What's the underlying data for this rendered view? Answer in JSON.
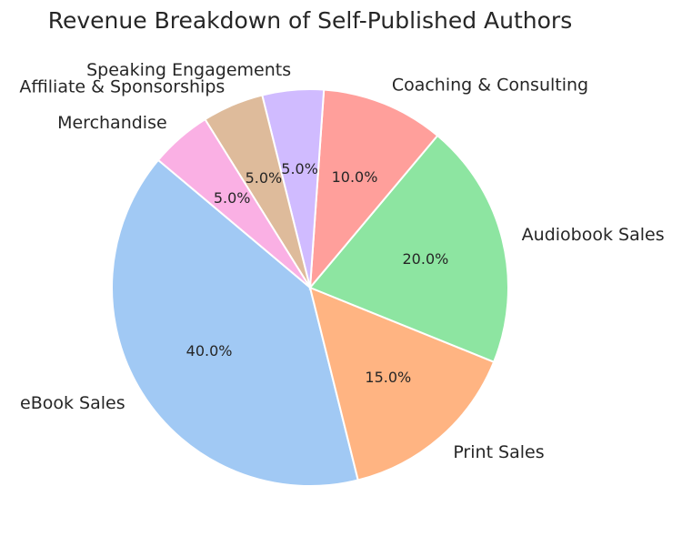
{
  "chart_data": {
    "type": "pie",
    "title": "Revenue Breakdown of Self-Published Authors",
    "start_angle_deg": 140,
    "direction": "counterclockwise",
    "slices": [
      {
        "label": "eBook Sales",
        "value": 40.0,
        "pct_text": "40.0%",
        "color": "#a1c9f4"
      },
      {
        "label": "Print Sales",
        "value": 15.0,
        "pct_text": "15.0%",
        "color": "#ffb482"
      },
      {
        "label": "Audiobook Sales",
        "value": 20.0,
        "pct_text": "20.0%",
        "color": "#8de5a1"
      },
      {
        "label": "Coaching & Consulting",
        "value": 10.0,
        "pct_text": "10.0%",
        "color": "#ff9f9b"
      },
      {
        "label": "Speaking Engagements",
        "value": 5.0,
        "pct_text": "5.0%",
        "color": "#d0bbff"
      },
      {
        "label": "Affiliate & Sponsorships",
        "value": 5.0,
        "pct_text": "5.0%",
        "color": "#debb9b"
      },
      {
        "label": "Merchandise",
        "value": 5.0,
        "pct_text": "5.0%",
        "color": "#fab0e4"
      }
    ]
  }
}
